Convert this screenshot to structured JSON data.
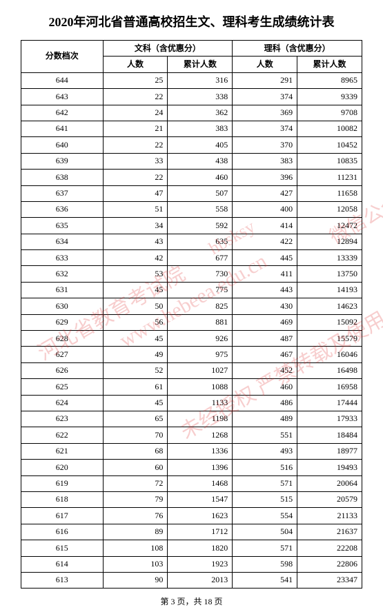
{
  "title": "2020年河北省普通高校招生文、理科考生成绩统计表",
  "columns": {
    "score": "分数档次",
    "group_lib": "文科（含优惠分）",
    "group_sci": "理科（含优惠分）",
    "count": "人数",
    "cumulative": "累计人数"
  },
  "style": {
    "header_fontsize": 12,
    "cell_fontsize": 12,
    "title_fontsize": 18,
    "border_color": "#000000",
    "background_color": "#ffffff",
    "text_color": "#000000",
    "score_align": "center",
    "num_align": "right",
    "col_widths_pct": [
      22,
      19.5,
      19.5,
      19.5,
      19.5
    ]
  },
  "rows": [
    {
      "score": 644,
      "lib_n": 25,
      "lib_c": 316,
      "sci_n": 291,
      "sci_c": 8965
    },
    {
      "score": 643,
      "lib_n": 22,
      "lib_c": 338,
      "sci_n": 374,
      "sci_c": 9339
    },
    {
      "score": 642,
      "lib_n": 24,
      "lib_c": 362,
      "sci_n": 369,
      "sci_c": 9708
    },
    {
      "score": 641,
      "lib_n": 21,
      "lib_c": 383,
      "sci_n": 374,
      "sci_c": 10082
    },
    {
      "score": 640,
      "lib_n": 22,
      "lib_c": 405,
      "sci_n": 370,
      "sci_c": 10452
    },
    {
      "score": 639,
      "lib_n": 33,
      "lib_c": 438,
      "sci_n": 383,
      "sci_c": 10835
    },
    {
      "score": 638,
      "lib_n": 22,
      "lib_c": 460,
      "sci_n": 396,
      "sci_c": 11231
    },
    {
      "score": 637,
      "lib_n": 47,
      "lib_c": 507,
      "sci_n": 427,
      "sci_c": 11658
    },
    {
      "score": 636,
      "lib_n": 51,
      "lib_c": 558,
      "sci_n": 400,
      "sci_c": 12058
    },
    {
      "score": 635,
      "lib_n": 34,
      "lib_c": 592,
      "sci_n": 414,
      "sci_c": 12472
    },
    {
      "score": 634,
      "lib_n": 43,
      "lib_c": 635,
      "sci_n": 422,
      "sci_c": 12894
    },
    {
      "score": 633,
      "lib_n": 42,
      "lib_c": 677,
      "sci_n": 445,
      "sci_c": 13339
    },
    {
      "score": 632,
      "lib_n": 53,
      "lib_c": 730,
      "sci_n": 411,
      "sci_c": 13750
    },
    {
      "score": 631,
      "lib_n": 45,
      "lib_c": 775,
      "sci_n": 443,
      "sci_c": 14193
    },
    {
      "score": 630,
      "lib_n": 50,
      "lib_c": 825,
      "sci_n": 430,
      "sci_c": 14623
    },
    {
      "score": 629,
      "lib_n": 56,
      "lib_c": 881,
      "sci_n": 469,
      "sci_c": 15092
    },
    {
      "score": 628,
      "lib_n": 45,
      "lib_c": 926,
      "sci_n": 487,
      "sci_c": 15579
    },
    {
      "score": 627,
      "lib_n": 49,
      "lib_c": 975,
      "sci_n": 467,
      "sci_c": 16046
    },
    {
      "score": 626,
      "lib_n": 52,
      "lib_c": 1027,
      "sci_n": 452,
      "sci_c": 16498
    },
    {
      "score": 625,
      "lib_n": 61,
      "lib_c": 1088,
      "sci_n": 460,
      "sci_c": 16958
    },
    {
      "score": 624,
      "lib_n": 45,
      "lib_c": 1133,
      "sci_n": 486,
      "sci_c": 17444
    },
    {
      "score": 623,
      "lib_n": 65,
      "lib_c": 1198,
      "sci_n": 489,
      "sci_c": 17933
    },
    {
      "score": 622,
      "lib_n": 70,
      "lib_c": 1268,
      "sci_n": 551,
      "sci_c": 18484
    },
    {
      "score": 621,
      "lib_n": 68,
      "lib_c": 1336,
      "sci_n": 493,
      "sci_c": 18977
    },
    {
      "score": 620,
      "lib_n": 60,
      "lib_c": 1396,
      "sci_n": 516,
      "sci_c": 19493
    },
    {
      "score": 619,
      "lib_n": 72,
      "lib_c": 1468,
      "sci_n": 571,
      "sci_c": 20064
    },
    {
      "score": 618,
      "lib_n": 79,
      "lib_c": 1547,
      "sci_n": 515,
      "sci_c": 20579
    },
    {
      "score": 617,
      "lib_n": 76,
      "lib_c": 1623,
      "sci_n": 554,
      "sci_c": 21133
    },
    {
      "score": 616,
      "lib_n": 89,
      "lib_c": 1712,
      "sci_n": 504,
      "sci_c": 21637
    },
    {
      "score": 615,
      "lib_n": 108,
      "lib_c": 1820,
      "sci_n": 571,
      "sci_c": 22208
    },
    {
      "score": 614,
      "lib_n": 103,
      "lib_c": 1923,
      "sci_n": 598,
      "sci_c": 22806
    },
    {
      "score": 613,
      "lib_n": 90,
      "lib_c": 2013,
      "sci_n": 541,
      "sci_c": 23347
    }
  ],
  "footer": "第 3 页，共 18 页",
  "watermarks": {
    "color": "rgba(220,30,30,0.22)",
    "rotation_deg": -30,
    "texts": [
      "河北省教育考试院",
      "www.hebeea.edu.cn",
      "hbsksy",
      "未经授权 严禁转载及使用",
      "微信公众号"
    ]
  }
}
